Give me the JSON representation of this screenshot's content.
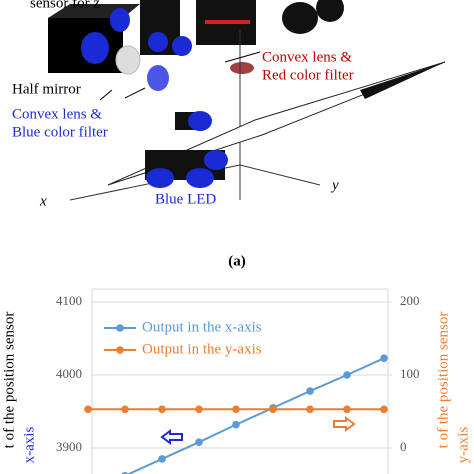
{
  "diagram": {
    "labels": [
      "sensor for z",
      "Half mirror",
      "Convex lens &",
      "Blue color filter",
      "Convex lens &",
      "Red color filter",
      "Blue LED",
      "x",
      "y"
    ],
    "caption": "(a)"
  },
  "chart_data": {
    "type": "line",
    "categories": [
      null,
      null,
      null,
      null,
      null,
      null,
      null,
      null,
      null
    ],
    "series": [
      {
        "name": "Output in the x-axis",
        "color": "#5b9bd5",
        "values": [
          null,
          3862,
          3885,
          3908,
          3932,
          3955,
          3978,
          4000,
          4023
        ]
      },
      {
        "name": "Output in the y-axis",
        "color": "#ed7d31",
        "axis": "y2",
        "values": [
          53,
          53,
          53,
          53,
          53,
          53,
          53,
          53,
          53
        ]
      }
    ],
    "ylim": [
      3900,
      4100
    ],
    "yticks": [
      3900,
      4000,
      4100
    ],
    "y2lim": [
      0,
      200
    ],
    "y2ticks": [
      0,
      100,
      200
    ],
    "ylabel": "t of the position sensor",
    "ylabel_axis": "x-axis",
    "y2label": "t of the position sensor",
    "y2label_axis": "y-axis",
    "grid": true
  }
}
